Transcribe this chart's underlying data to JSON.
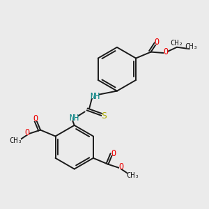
{
  "bg_color": "#ebebeb",
  "bond_color": "#1a1a1a",
  "bond_width": 1.4,
  "NH_color": "#008080",
  "N_color": "#0000cc",
  "O_color": "#ee0000",
  "S_color": "#aaaa00",
  "figsize": [
    3.0,
    3.0
  ],
  "dpi": 100,
  "xlim": [
    0,
    10
  ],
  "ylim": [
    0,
    10
  ]
}
